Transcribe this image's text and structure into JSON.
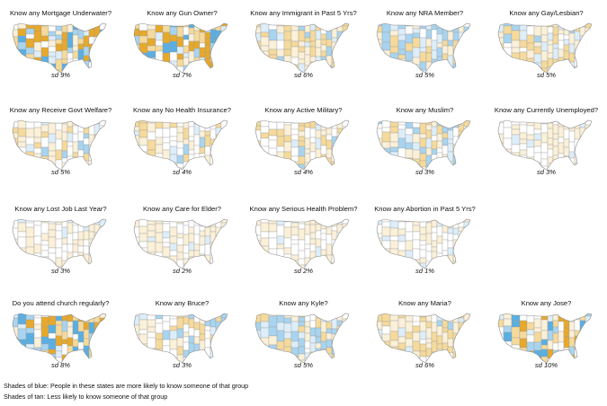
{
  "palette": {
    "blue_strong": "#5aafe2",
    "blue_mid": "#a9d4ef",
    "blue_light": "#ddeefa",
    "neutral": "#ffffff",
    "tan_light": "#fbf0d8",
    "tan_mid": "#f5da9c",
    "tan_strong": "#e6a92c",
    "border": "#9a9a9a"
  },
  "maps": [
    {
      "title": "Know any Mortgage Underwater?",
      "sd": "sd 9%",
      "tone": "strong",
      "bias": "mixed"
    },
    {
      "title": "Know any Gun Owner?",
      "sd": "sd 7%",
      "tone": "strong",
      "bias": "mixed"
    },
    {
      "title": "Know any Immigrant in Past 5 Yrs?",
      "sd": "sd 6%",
      "tone": "mid",
      "bias": "tan"
    },
    {
      "title": "Know any NRA Member?",
      "sd": "sd 5%",
      "tone": "mid",
      "bias": "blue"
    },
    {
      "title": "Know any Gay/Lesbian?",
      "sd": "sd 5%",
      "tone": "mid",
      "bias": "mixed"
    },
    {
      "title": "Know any Receive Govt Welfare?",
      "sd": "sd 5%",
      "tone": "light",
      "bias": "tan"
    },
    {
      "title": "Know any No Health Insurance?",
      "sd": "sd 4%",
      "tone": "light",
      "bias": "tan"
    },
    {
      "title": "Know any Active Military?",
      "sd": "sd 4%",
      "tone": "light",
      "bias": "tan"
    },
    {
      "title": "Know any Muslim?",
      "sd": "sd 3%",
      "tone": "light",
      "bias": "mixed"
    },
    {
      "title": "Know any Currently Unemployed?",
      "sd": "sd 3%",
      "tone": "faint",
      "bias": "tan"
    },
    {
      "title": "Know any Lost Job Last Year?",
      "sd": "sd 3%",
      "tone": "faint",
      "bias": "tan"
    },
    {
      "title": "Know any Care for Elder?",
      "sd": "sd 2%",
      "tone": "faint",
      "bias": "tan"
    },
    {
      "title": "Know any Serious Health Problem?",
      "sd": "sd 2%",
      "tone": "faint",
      "bias": "tan"
    },
    {
      "title": "Know any Abortion in Past 5 Yrs?",
      "sd": "sd 1%",
      "tone": "faint",
      "bias": "tan"
    },
    {
      "title": "Do you attend church regularly?",
      "sd": "sd 8%",
      "tone": "strong",
      "bias": "mixed"
    },
    {
      "title": "Know any Bruce?",
      "sd": "sd 3%",
      "tone": "light",
      "bias": "mixed"
    },
    {
      "title": "Know any Kyle?",
      "sd": "sd 5%",
      "tone": "mid",
      "bias": "blue"
    },
    {
      "title": "Know any Maria?",
      "sd": "sd 6%",
      "tone": "mid",
      "bias": "tan"
    },
    {
      "title": "Know any Jose?",
      "sd": "sd 10%",
      "tone": "strong",
      "bias": "mixed"
    }
  ],
  "legend": {
    "line1": "Shades of blue:  People in these states are more likely to know someone of that group",
    "line2": "Shades of tan:  Less likely to know someone of that group"
  }
}
